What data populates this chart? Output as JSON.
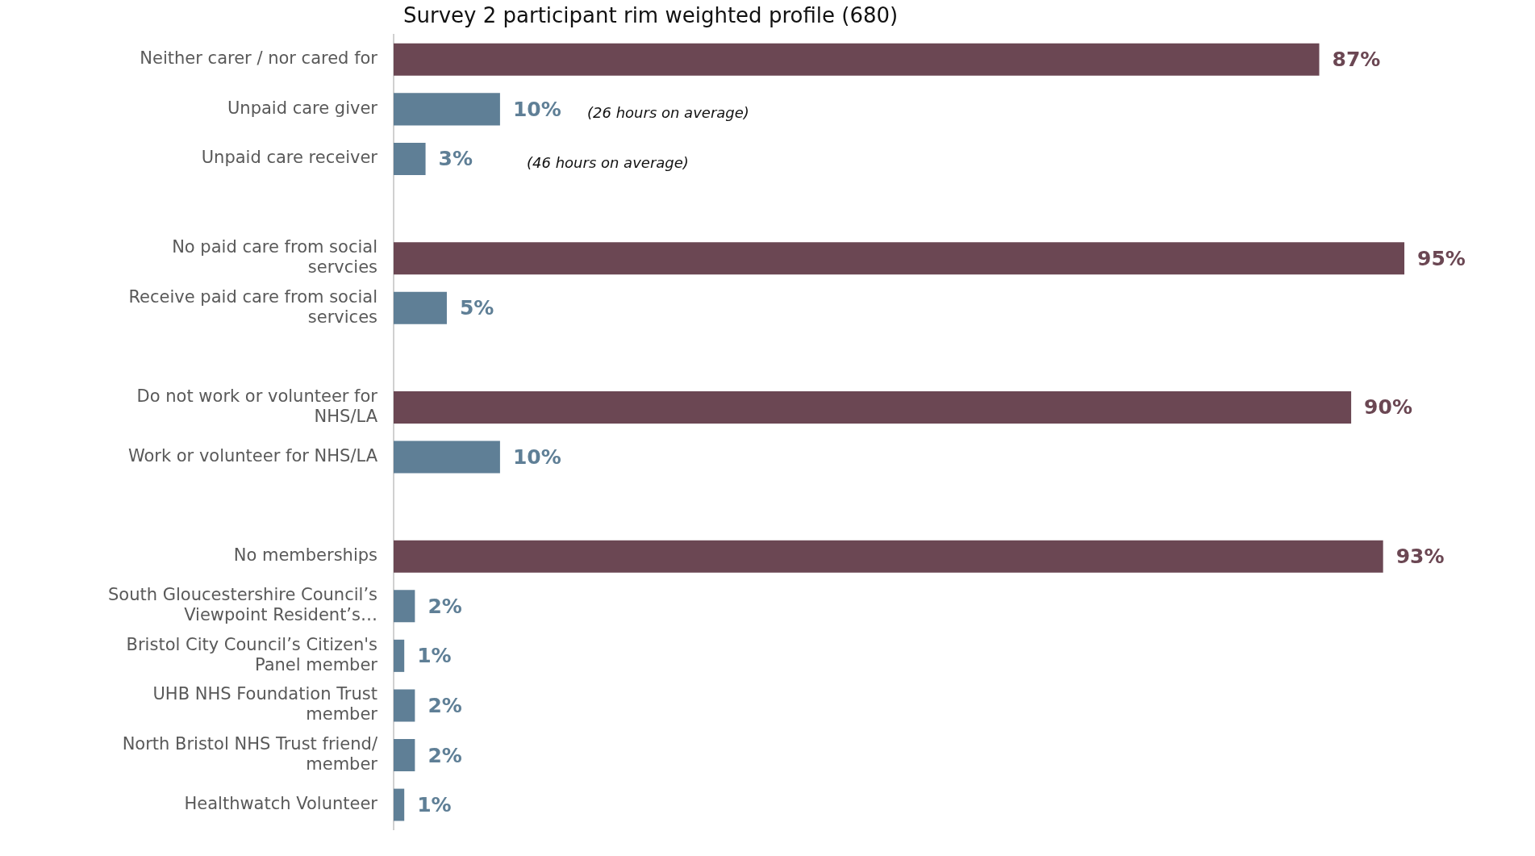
{
  "chart_data": {
    "type": "bar",
    "orientation": "horizontal",
    "title": "Survey 2 participant rim weighted profile (680)",
    "categories": [
      "Neither carer / nor cared for",
      "Unpaid care giver",
      "Unpaid care receiver",
      null,
      "No paid care from social servcies",
      "Receive paid care from social services",
      null,
      "Do not work or volunteer for NHS/LA",
      "Work or volunteer for NHS/LA",
      null,
      "No memberships",
      "South Gloucestershire Council’s Viewpoint Resident’s…",
      "Bristol City Council’s Citizen's Panel member",
      "UHB NHS Foundation Trust member",
      "North Bristol NHS Trust friend/ member",
      "Healthwatch Volunteer"
    ],
    "values": [
      87,
      10,
      3,
      null,
      95,
      5,
      null,
      90,
      10,
      null,
      93,
      2,
      1,
      2,
      2,
      1
    ],
    "value_labels": [
      "87%",
      "10%",
      "3%",
      null,
      "95%",
      "5%",
      null,
      "90%",
      "10%",
      null,
      "93%",
      "2%",
      "1%",
      "2%",
      "2%",
      "1%"
    ],
    "colors": [
      "#6b4753",
      "#5f7f96",
      "#5f7f96",
      null,
      "#6b4753",
      "#5f7f96",
      null,
      "#6b4753",
      "#5f7f96",
      null,
      "#6b4753",
      "#5f7f96",
      "#5f7f96",
      "#5f7f96",
      "#5f7f96",
      "#5f7f96"
    ],
    "tick_labels": "y",
    "grid": false,
    "legend": false,
    "annotations": [
      "(26 hours on average)",
      "(46 hours on average)"
    ]
  }
}
